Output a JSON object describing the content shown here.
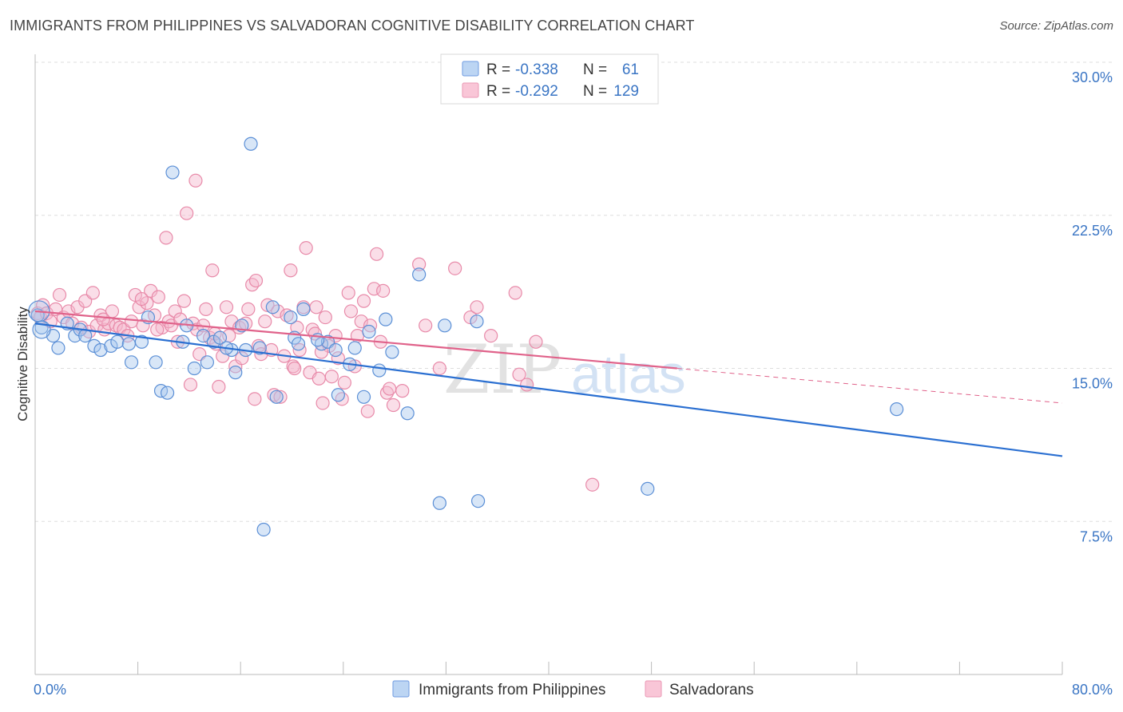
{
  "title": "IMMIGRANTS FROM PHILIPPINES VS SALVADORAN COGNITIVE DISABILITY CORRELATION CHART",
  "source": "Source: ZipAtlas.com",
  "watermark": {
    "zip": "ZIP",
    "atlas": "atlas"
  },
  "colors": {
    "blue_fill": "#a9c8ee",
    "blue_stroke": "#5b8fd6",
    "blue_line": "#2a6fd1",
    "pink_fill": "#f5b6cb",
    "pink_stroke": "#e88aa9",
    "pink_line": "#e0628a",
    "axis_text": "#3a75c4",
    "grid": "#dddddd"
  },
  "legend": {
    "rows": [
      {
        "r_label": "R = ",
        "r_value": "-0.338",
        "n_label": "N = ",
        "n_value": "61"
      },
      {
        "r_label": "R = ",
        "r_value": "-0.292",
        "n_label": "N = ",
        "n_value": "129"
      }
    ]
  },
  "chart_data": {
    "type": "scatter",
    "title": "IMMIGRANTS FROM PHILIPPINES VS SALVADORAN COGNITIVE DISABILITY CORRELATION CHART",
    "xlabel": "",
    "ylabel": "Cognitive Disability",
    "xlim": [
      0,
      80
    ],
    "ylim": [
      0,
      30
    ],
    "x_tick_labels": [
      "0.0%",
      "80.0%"
    ],
    "y_ticks": [
      7.5,
      15.0,
      22.5,
      30.0
    ],
    "y_tick_labels": [
      "7.5%",
      "15.0%",
      "22.5%",
      "30.0%"
    ],
    "grid": "horizontal dashed",
    "legend_placement": "top-center",
    "series": [
      {
        "name": "Immigrants from Philippines",
        "color": "blue",
        "R": -0.338,
        "N": 61,
        "trend": {
          "x0": 0,
          "y0": 17.2,
          "x1": 80,
          "y1": 10.7
        },
        "points": [
          [
            0.2,
            17.6
          ],
          [
            0.5,
            17.0
          ],
          [
            1.4,
            16.6
          ],
          [
            1.8,
            16.0
          ],
          [
            2.5,
            17.2
          ],
          [
            3.1,
            16.6
          ],
          [
            3.5,
            16.9
          ],
          [
            3.9,
            16.6
          ],
          [
            4.6,
            16.1
          ],
          [
            5.1,
            15.9
          ],
          [
            5.9,
            16.1
          ],
          [
            6.4,
            16.3
          ],
          [
            7.3,
            16.2
          ],
          [
            7.5,
            15.3
          ],
          [
            8.3,
            16.3
          ],
          [
            8.8,
            17.5
          ],
          [
            9.4,
            15.3
          ],
          [
            9.8,
            13.9
          ],
          [
            10.3,
            13.8
          ],
          [
            10.7,
            24.6
          ],
          [
            11.5,
            16.3
          ],
          [
            11.8,
            17.1
          ],
          [
            12.4,
            15.0
          ],
          [
            13.1,
            16.6
          ],
          [
            13.4,
            15.3
          ],
          [
            13.9,
            16.3
          ],
          [
            14.4,
            16.5
          ],
          [
            15.3,
            15.9
          ],
          [
            15.6,
            14.8
          ],
          [
            16.4,
            15.9
          ],
          [
            16.1,
            17.1
          ],
          [
            16.8,
            26.0
          ],
          [
            17.5,
            16.0
          ],
          [
            17.8,
            7.1
          ],
          [
            18.5,
            18.0
          ],
          [
            18.8,
            13.6
          ],
          [
            19.9,
            17.5
          ],
          [
            20.2,
            16.5
          ],
          [
            20.5,
            16.2
          ],
          [
            20.9,
            17.9
          ],
          [
            22.3,
            16.2
          ],
          [
            22.8,
            16.3
          ],
          [
            23.4,
            15.9
          ],
          [
            23.6,
            13.7
          ],
          [
            24.5,
            15.2
          ],
          [
            24.9,
            16.0
          ],
          [
            25.6,
            13.6
          ],
          [
            26.0,
            16.8
          ],
          [
            26.8,
            14.9
          ],
          [
            27.3,
            17.4
          ],
          [
            27.8,
            15.8
          ],
          [
            29.0,
            12.8
          ],
          [
            29.9,
            19.6
          ],
          [
            31.5,
            8.4
          ],
          [
            31.9,
            17.1
          ],
          [
            34.5,
            8.5
          ],
          [
            34.4,
            17.3
          ],
          [
            47.7,
            9.1
          ],
          [
            67.1,
            13.0
          ],
          [
            14.9,
            16.0
          ],
          [
            22.0,
            16.4
          ]
        ]
      },
      {
        "name": "Salvadorans",
        "color": "pink",
        "R": -0.292,
        "N": 129,
        "trend": {
          "x0": 0,
          "y0": 17.8,
          "x1": 50,
          "y1": 15.0
        },
        "trend_dashed": {
          "x0": 50,
          "y0": 15.0,
          "x1": 80,
          "y1": 13.3
        },
        "points": [
          [
            0.2,
            17.7
          ],
          [
            0.4,
            17.5
          ],
          [
            0.6,
            18.1
          ],
          [
            0.9,
            17.7
          ],
          [
            1.2,
            17.3
          ],
          [
            1.6,
            17.9
          ],
          [
            1.9,
            18.6
          ],
          [
            2.2,
            17.5
          ],
          [
            2.6,
            17.8
          ],
          [
            2.9,
            17.2
          ],
          [
            3.3,
            18.0
          ],
          [
            3.6,
            17.0
          ],
          [
            3.9,
            18.3
          ],
          [
            4.2,
            16.8
          ],
          [
            4.5,
            18.7
          ],
          [
            4.8,
            17.1
          ],
          [
            5.1,
            17.6
          ],
          [
            5.4,
            16.9
          ],
          [
            5.7,
            17.2
          ],
          [
            6.0,
            17.8
          ],
          [
            6.3,
            17.1
          ],
          [
            6.6,
            17.0
          ],
          [
            6.9,
            16.9
          ],
          [
            7.2,
            16.6
          ],
          [
            7.5,
            17.3
          ],
          [
            7.8,
            18.6
          ],
          [
            8.1,
            18.0
          ],
          [
            8.4,
            17.1
          ],
          [
            8.7,
            18.2
          ],
          [
            9.0,
            18.8
          ],
          [
            9.3,
            17.6
          ],
          [
            9.6,
            18.5
          ],
          [
            9.9,
            17.0
          ],
          [
            10.2,
            21.4
          ],
          [
            10.4,
            17.3
          ],
          [
            10.6,
            17.1
          ],
          [
            10.9,
            17.8
          ],
          [
            11.1,
            16.3
          ],
          [
            11.3,
            17.4
          ],
          [
            11.6,
            18.3
          ],
          [
            11.8,
            22.6
          ],
          [
            12.1,
            14.2
          ],
          [
            12.3,
            17.2
          ],
          [
            12.6,
            16.9
          ],
          [
            12.8,
            15.7
          ],
          [
            13.1,
            17.1
          ],
          [
            13.3,
            17.9
          ],
          [
            13.6,
            16.5
          ],
          [
            13.8,
            19.8
          ],
          [
            14.1,
            16.2
          ],
          [
            14.3,
            14.1
          ],
          [
            14.6,
            15.6
          ],
          [
            14.9,
            18.0
          ],
          [
            15.1,
            16.6
          ],
          [
            15.3,
            17.3
          ],
          [
            15.6,
            15.1
          ],
          [
            15.9,
            17.0
          ],
          [
            16.1,
            15.5
          ],
          [
            16.4,
            17.2
          ],
          [
            16.6,
            17.9
          ],
          [
            16.9,
            19.1
          ],
          [
            17.1,
            13.5
          ],
          [
            17.4,
            16.1
          ],
          [
            17.6,
            15.7
          ],
          [
            17.9,
            17.3
          ],
          [
            18.1,
            18.1
          ],
          [
            18.4,
            15.9
          ],
          [
            18.6,
            13.7
          ],
          [
            18.9,
            17.8
          ],
          [
            19.1,
            13.6
          ],
          [
            19.4,
            15.6
          ],
          [
            19.6,
            17.6
          ],
          [
            19.9,
            19.8
          ],
          [
            20.1,
            15.1
          ],
          [
            20.4,
            17.0
          ],
          [
            20.6,
            15.9
          ],
          [
            20.9,
            18.0
          ],
          [
            21.1,
            20.9
          ],
          [
            21.4,
            14.8
          ],
          [
            21.6,
            16.9
          ],
          [
            21.9,
            18.0
          ],
          [
            22.1,
            14.5
          ],
          [
            22.4,
            13.3
          ],
          [
            22.6,
            17.5
          ],
          [
            22.9,
            16.1
          ],
          [
            23.1,
            14.6
          ],
          [
            23.4,
            16.6
          ],
          [
            23.6,
            15.5
          ],
          [
            23.9,
            13.5
          ],
          [
            24.1,
            14.3
          ],
          [
            24.4,
            18.7
          ],
          [
            24.6,
            17.8
          ],
          [
            24.9,
            15.1
          ],
          [
            25.1,
            16.6
          ],
          [
            25.4,
            17.3
          ],
          [
            25.6,
            18.3
          ],
          [
            25.9,
            12.9
          ],
          [
            26.1,
            17.1
          ],
          [
            26.4,
            18.9
          ],
          [
            26.6,
            20.6
          ],
          [
            26.9,
            16.3
          ],
          [
            27.1,
            18.8
          ],
          [
            27.4,
            13.8
          ],
          [
            27.6,
            14.0
          ],
          [
            27.9,
            13.2
          ],
          [
            28.6,
            13.9
          ],
          [
            29.9,
            20.1
          ],
          [
            30.4,
            17.1
          ],
          [
            31.5,
            15.0
          ],
          [
            32.7,
            19.9
          ],
          [
            33.9,
            17.5
          ],
          [
            34.4,
            18.0
          ],
          [
            35.5,
            16.6
          ],
          [
            37.4,
            18.7
          ],
          [
            37.7,
            14.7
          ],
          [
            38.3,
            14.2
          ],
          [
            39.0,
            16.3
          ],
          [
            43.4,
            9.3
          ],
          [
            8.3,
            18.4
          ],
          [
            12.5,
            24.2
          ],
          [
            17.2,
            19.3
          ],
          [
            20.2,
            15.0
          ],
          [
            21.8,
            16.7
          ],
          [
            5.3,
            17.4
          ],
          [
            9.5,
            16.9
          ],
          [
            14.0,
            16.7
          ],
          [
            22.3,
            15.8
          ]
        ]
      }
    ]
  },
  "bottom_legend": [
    {
      "label": "Immigrants from Philippines",
      "color": "blue"
    },
    {
      "label": "Salvadorans",
      "color": "pink"
    }
  ]
}
